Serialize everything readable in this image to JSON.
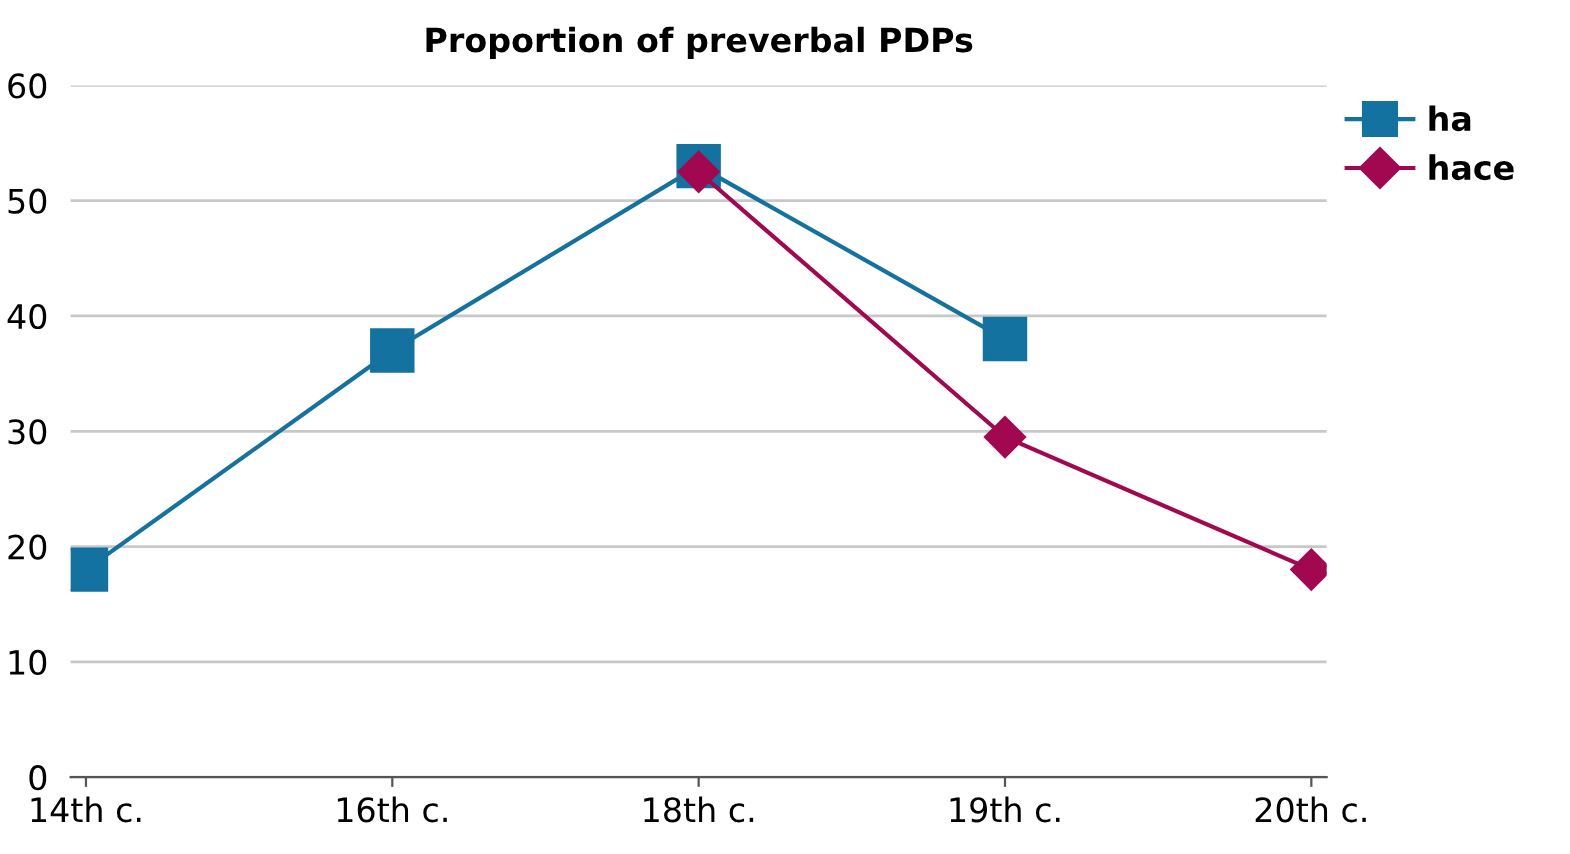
{
  "chart_data": {
    "type": "line",
    "title": "Proportion of preverbal PDPs",
    "categories": [
      "14th c.",
      "16th c.",
      "18th c.",
      "19th c.",
      "20th c."
    ],
    "series": [
      {
        "name": "ha",
        "color": "#13729f",
        "marker": "square",
        "values": [
          18,
          37,
          53,
          38,
          null
        ]
      },
      {
        "name": "hace",
        "color": "#a1084f",
        "marker": "diamond",
        "values": [
          null,
          null,
          52.5,
          29.5,
          18
        ]
      }
    ],
    "ylim": [
      0,
      60
    ],
    "yticks": [
      0,
      10,
      20,
      30,
      40,
      50,
      60
    ],
    "grid": "y",
    "legend": "top right",
    "line_style": "solid"
  }
}
